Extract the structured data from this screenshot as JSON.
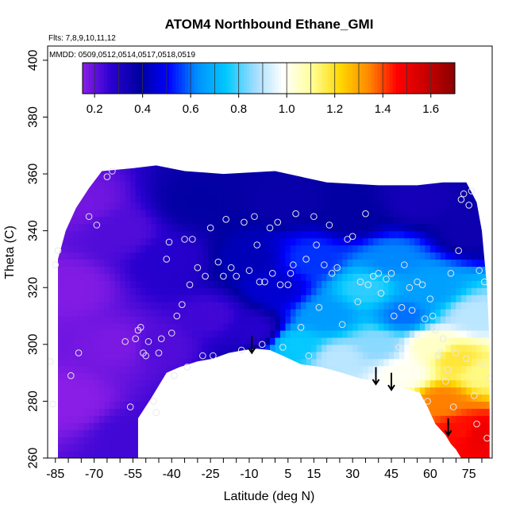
{
  "chart_data": {
    "type": "heatmap",
    "title": "ATOM4 Northbound Ethane_GMI",
    "flights_note": "Flts: 7,8,9,10,11,12",
    "dates_note": "MMDD: 0509,0512,0514,0517,0518,0519",
    "xlabel": "Latitude (deg N)",
    "ylabel": "Theta (C)",
    "xlim": [
      -88,
      84
    ],
    "ylim": [
      260,
      405
    ],
    "x_ticks": [
      -85,
      -70,
      -55,
      -40,
      -25,
      -10,
      5,
      15,
      30,
      45,
      60,
      75
    ],
    "y_ticks": [
      260,
      280,
      300,
      320,
      340,
      360,
      380,
      400
    ],
    "colorbar": {
      "range": [
        0.15,
        1.7
      ],
      "ticks": [
        0.2,
        0.4,
        0.6,
        0.8,
        1.0,
        1.2,
        1.4,
        1.6
      ],
      "colors": [
        "#8a1ee6",
        "#2a00d0",
        "#0000a0",
        "#0000ff",
        "#0090ff",
        "#00c8ff",
        "#9fdcff",
        "#ffffff",
        "#ffff99",
        "#ffd700",
        "#ff8800",
        "#ff0000",
        "#c80000",
        "#8b0000"
      ]
    },
    "ground_boundary": [
      [
        -53,
        260
      ],
      [
        -53,
        274
      ],
      [
        -48,
        281
      ],
      [
        -42,
        290
      ],
      [
        -37,
        292
      ],
      [
        -30,
        294
      ],
      [
        -24,
        295
      ],
      [
        -18,
        297
      ],
      [
        -12,
        298
      ],
      [
        -7,
        298.5
      ],
      [
        -2,
        298
      ],
      [
        3,
        296
      ],
      [
        10,
        293
      ],
      [
        18,
        292
      ],
      [
        26,
        290
      ],
      [
        33,
        288
      ],
      [
        40,
        287
      ],
      [
        45,
        286
      ],
      [
        48,
        285
      ],
      [
        52,
        284
      ],
      [
        56,
        283
      ],
      [
        59,
        278
      ],
      [
        62,
        272
      ],
      [
        66,
        268
      ],
      [
        68,
        265
      ],
      [
        70,
        263
      ],
      [
        72,
        260
      ]
    ],
    "top_boundary": [
      [
        -84,
        330
      ],
      [
        -81,
        340
      ],
      [
        -77,
        348
      ],
      [
        -72,
        355
      ],
      [
        -67,
        361
      ],
      [
        -55,
        362
      ],
      [
        -46,
        363
      ],
      [
        -35,
        361
      ],
      [
        -20,
        360
      ],
      [
        0,
        361
      ],
      [
        20,
        357
      ],
      [
        40,
        356
      ],
      [
        55,
        356
      ],
      [
        65,
        357
      ],
      [
        74,
        357
      ],
      [
        78,
        350
      ],
      [
        80,
        340
      ],
      [
        82,
        320
      ],
      [
        83,
        300
      ],
      [
        83,
        265
      ]
    ],
    "field_nodes": [
      {
        "x": -80,
        "y": 280,
        "v": 0.15
      },
      {
        "x": -80,
        "y": 320,
        "v": 0.16
      },
      {
        "x": -75,
        "y": 350,
        "v": 0.18
      },
      {
        "x": -60,
        "y": 300,
        "v": 0.17
      },
      {
        "x": -60,
        "y": 340,
        "v": 0.22
      },
      {
        "x": -55,
        "y": 268,
        "v": 0.24
      },
      {
        "x": -45,
        "y": 300,
        "v": 0.22
      },
      {
        "x": -40,
        "y": 330,
        "v": 0.28
      },
      {
        "x": -30,
        "y": 350,
        "v": 0.38
      },
      {
        "x": -25,
        "y": 310,
        "v": 0.24
      },
      {
        "x": -10,
        "y": 330,
        "v": 0.42
      },
      {
        "x": -8,
        "y": 305,
        "v": 0.28
      },
      {
        "x": 0,
        "y": 320,
        "v": 0.45
      },
      {
        "x": 5,
        "y": 350,
        "v": 0.36
      },
      {
        "x": 8,
        "y": 300,
        "v": 0.75
      },
      {
        "x": 15,
        "y": 330,
        "v": 0.55
      },
      {
        "x": 20,
        "y": 310,
        "v": 0.65
      },
      {
        "x": 25,
        "y": 295,
        "v": 0.9
      },
      {
        "x": 30,
        "y": 345,
        "v": 0.38
      },
      {
        "x": 35,
        "y": 320,
        "v": 0.78
      },
      {
        "x": 40,
        "y": 300,
        "v": 0.85
      },
      {
        "x": 45,
        "y": 330,
        "v": 0.62
      },
      {
        "x": 50,
        "y": 310,
        "v": 0.6
      },
      {
        "x": 50,
        "y": 290,
        "v": 1.0
      },
      {
        "x": 55,
        "y": 350,
        "v": 0.33
      },
      {
        "x": 60,
        "y": 320,
        "v": 0.66
      },
      {
        "x": 60,
        "y": 300,
        "v": 1.05
      },
      {
        "x": 65,
        "y": 280,
        "v": 1.35
      },
      {
        "x": 70,
        "y": 295,
        "v": 1.18
      },
      {
        "x": 72,
        "y": 270,
        "v": 1.45
      },
      {
        "x": 75,
        "y": 340,
        "v": 0.35
      },
      {
        "x": 78,
        "y": 310,
        "v": 0.9
      },
      {
        "x": 80,
        "y": 290,
        "v": 1.12
      },
      {
        "x": 80,
        "y": 268,
        "v": 1.5
      }
    ],
    "observations": [
      [
        -87,
        294
      ],
      [
        -86,
        279
      ],
      [
        -85,
        328
      ],
      [
        -84,
        333
      ],
      [
        -79,
        289
      ],
      [
        -76,
        297
      ],
      [
        -72,
        345
      ],
      [
        -69,
        342
      ],
      [
        -65,
        359
      ],
      [
        -63,
        361
      ],
      [
        -58,
        301
      ],
      [
        -56,
        278
      ],
      [
        -54,
        302
      ],
      [
        -53,
        305
      ],
      [
        -52,
        306
      ],
      [
        -51,
        297
      ],
      [
        -50,
        296
      ],
      [
        -49,
        301
      ],
      [
        -47,
        280
      ],
      [
        -46,
        276
      ],
      [
        -45,
        297
      ],
      [
        -44,
        302
      ],
      [
        -42,
        330
      ],
      [
        -41,
        336
      ],
      [
        -40,
        304
      ],
      [
        -39,
        289
      ],
      [
        -38,
        310
      ],
      [
        -36,
        314
      ],
      [
        -35,
        337
      ],
      [
        -34,
        292
      ],
      [
        -33,
        321
      ],
      [
        -32,
        337
      ],
      [
        -30,
        327
      ],
      [
        -28,
        296
      ],
      [
        -27,
        324
      ],
      [
        -25,
        341
      ],
      [
        -24,
        296
      ],
      [
        -22,
        329
      ],
      [
        -20,
        324
      ],
      [
        -19,
        344
      ],
      [
        -17,
        327
      ],
      [
        -15,
        324
      ],
      [
        -13,
        298
      ],
      [
        -12,
        343
      ],
      [
        -10,
        326
      ],
      [
        -8,
        345
      ],
      [
        -7,
        335
      ],
      [
        -6,
        322
      ],
      [
        -5,
        300
      ],
      [
        -4,
        322
      ],
      [
        -2,
        341
      ],
      [
        -1,
        325
      ],
      [
        1,
        343
      ],
      [
        2,
        321
      ],
      [
        3,
        299
      ],
      [
        5,
        321
      ],
      [
        6,
        325
      ],
      [
        7,
        328
      ],
      [
        8,
        346
      ],
      [
        10,
        306
      ],
      [
        12,
        330
      ],
      [
        13,
        296
      ],
      [
        15,
        345
      ],
      [
        16,
        335
      ],
      [
        17,
        313
      ],
      [
        19,
        328
      ],
      [
        21,
        342
      ],
      [
        22,
        325
      ],
      [
        24,
        327
      ],
      [
        26,
        307
      ],
      [
        28,
        337
      ],
      [
        30,
        338
      ],
      [
        32,
        315
      ],
      [
        33,
        322
      ],
      [
        35,
        346
      ],
      [
        36,
        321
      ],
      [
        38,
        324
      ],
      [
        40,
        325
      ],
      [
        41,
        318
      ],
      [
        43,
        323
      ],
      [
        45,
        325
      ],
      [
        46,
        310
      ],
      [
        48,
        299
      ],
      [
        49,
        313
      ],
      [
        50,
        328
      ],
      [
        52,
        320
      ],
      [
        53,
        312
      ],
      [
        55,
        322
      ],
      [
        57,
        321
      ],
      [
        58,
        309
      ],
      [
        59,
        280
      ],
      [
        60,
        316
      ],
      [
        61,
        310
      ],
      [
        62,
        305
      ],
      [
        63,
        296
      ],
      [
        64,
        297
      ],
      [
        65,
        302
      ],
      [
        66,
        287
      ],
      [
        67,
        291
      ],
      [
        68,
        325
      ],
      [
        69,
        278
      ],
      [
        70,
        297
      ],
      [
        71,
        333
      ],
      [
        72,
        351
      ],
      [
        73,
        353
      ],
      [
        74,
        295
      ],
      [
        75,
        349
      ],
      [
        76,
        354
      ],
      [
        77,
        282
      ],
      [
        78,
        272
      ],
      [
        79,
        326
      ],
      [
        80,
        293
      ],
      [
        81,
        322
      ],
      [
        82,
        267
      ],
      [
        83,
        288
      ]
    ],
    "arrows": [
      {
        "x": -9,
        "y_top": 303,
        "y_bottom": 297
      },
      {
        "x": 39,
        "y_top": 292,
        "y_bottom": 286
      },
      {
        "x": 45,
        "y_top": 290,
        "y_bottom": 284
      },
      {
        "x": 67,
        "y_top": 274,
        "y_bottom": 268
      }
    ],
    "grid": false,
    "legend_placement": "top"
  }
}
